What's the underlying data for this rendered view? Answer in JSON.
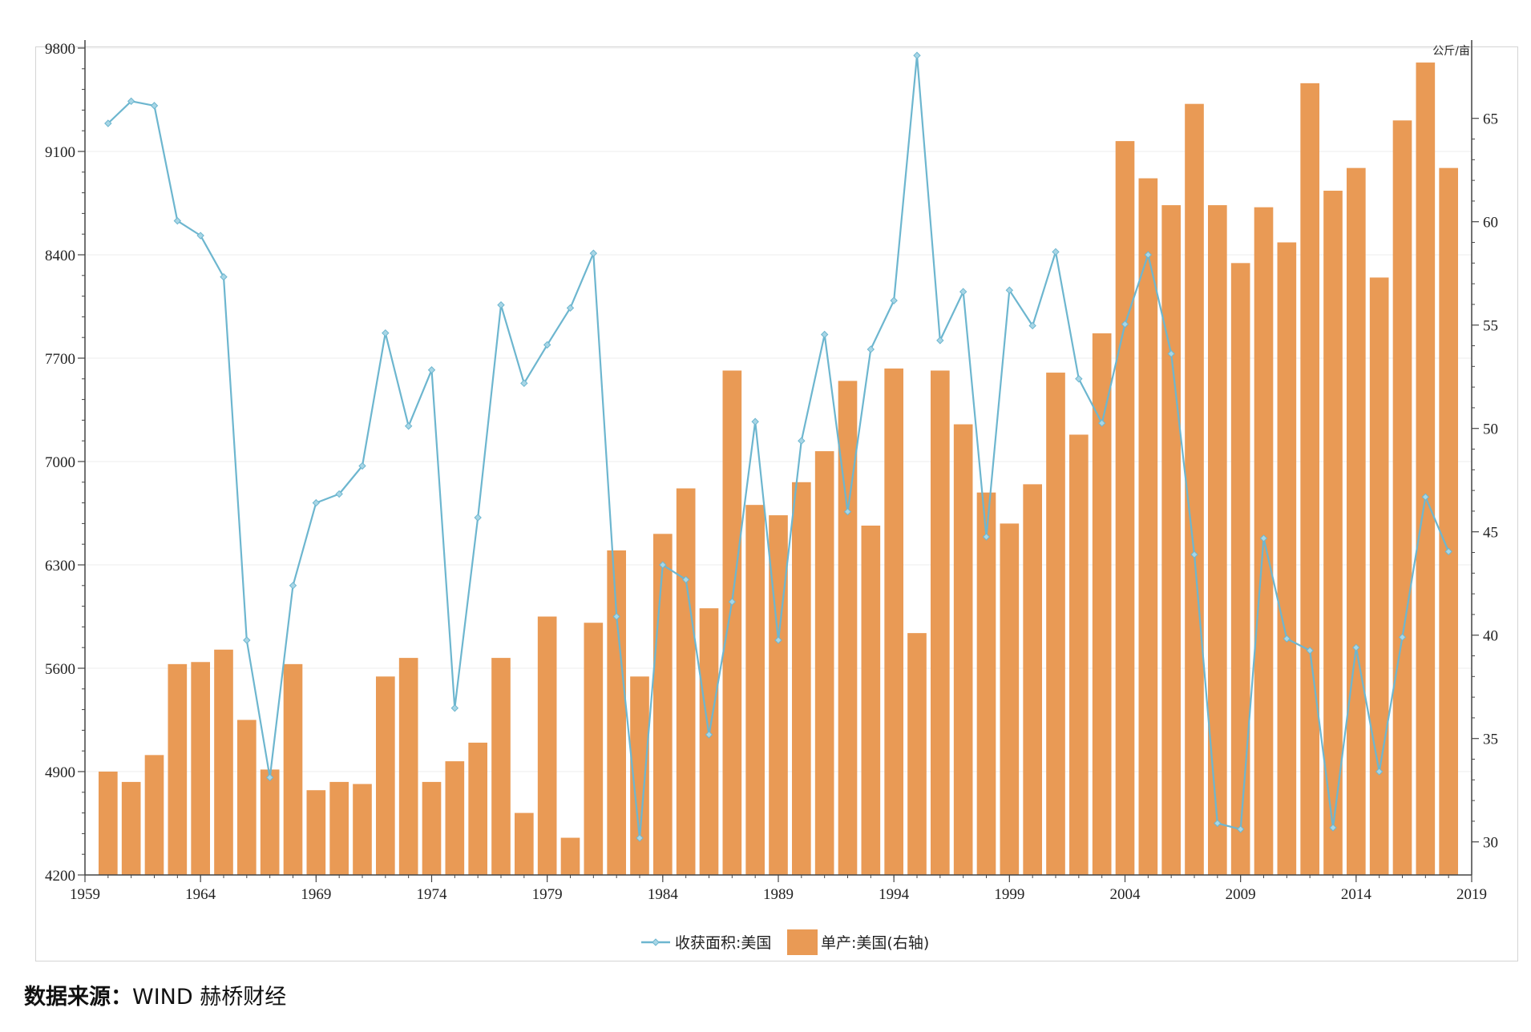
{
  "chart_data": {
    "type": "bar+line",
    "x": [
      1960,
      1961,
      1962,
      1963,
      1964,
      1965,
      1966,
      1967,
      1968,
      1969,
      1970,
      1971,
      1972,
      1973,
      1974,
      1975,
      1976,
      1977,
      1978,
      1979,
      1980,
      1981,
      1982,
      1983,
      1984,
      1985,
      1986,
      1987,
      1988,
      1989,
      1990,
      1991,
      1992,
      1993,
      1994,
      1995,
      1996,
      1997,
      1998,
      1999,
      2000,
      2001,
      2002,
      2003,
      2004,
      2005,
      2006,
      2007,
      2008,
      2009,
      2010,
      2011,
      2012,
      2013,
      2014,
      2015,
      2016,
      2017,
      2018
    ],
    "series": [
      {
        "name": "收获面积:美国",
        "kind": "line",
        "axis": "left",
        "color": "#6db6cf",
        "values": [
          9290,
          9440,
          9410,
          8630,
          8530,
          8250,
          5790,
          4860,
          6160,
          6720,
          6780,
          6970,
          7870,
          7240,
          7620,
          5330,
          6620,
          8060,
          7530,
          7790,
          8040,
          8410,
          5950,
          4450,
          6300,
          6200,
          5150,
          6050,
          7270,
          5790,
          7140,
          7860,
          6660,
          7760,
          8090,
          9750,
          7820,
          8150,
          6490,
          8160,
          7920,
          8420,
          7560,
          7260,
          7930,
          8400,
          7730,
          6370,
          4550,
          4510,
          6480,
          5800,
          5720,
          4520,
          5740,
          4900,
          5810,
          6760,
          6390
        ]
      },
      {
        "name": "单产:美国(右轴)",
        "kind": "bar",
        "axis": "right",
        "color": "#e99a55",
        "values": [
          33.4,
          32.9,
          34.2,
          38.6,
          38.7,
          39.3,
          35.9,
          33.5,
          38.6,
          32.5,
          32.9,
          32.8,
          38.0,
          38.9,
          32.9,
          33.9,
          34.8,
          38.9,
          31.4,
          40.9,
          30.2,
          40.6,
          44.1,
          38.0,
          44.9,
          47.1,
          41.3,
          52.8,
          46.3,
          45.8,
          47.4,
          48.9,
          52.3,
          45.3,
          52.9,
          40.1,
          52.8,
          50.2,
          46.9,
          45.4,
          47.3,
          52.7,
          49.7,
          54.6,
          63.9,
          62.1,
          60.8,
          65.7,
          60.8,
          58.0,
          60.7,
          59.0,
          66.7,
          61.5,
          62.6,
          57.3,
          64.9,
          67.7,
          62.6
        ]
      }
    ],
    "x_ticks": [
      1959,
      1964,
      1969,
      1974,
      1979,
      1984,
      1989,
      1994,
      1999,
      2004,
      2009,
      2014,
      2019
    ],
    "xlim": [
      1959,
      2019
    ],
    "y_left_ticks": [
      4200,
      4900,
      5600,
      6300,
      7000,
      7700,
      8400,
      9100,
      9800
    ],
    "y_left_lim": [
      4200,
      9800
    ],
    "y_right_ticks": [
      30,
      35,
      40,
      45,
      50,
      55,
      60,
      65
    ],
    "y_right_lim": [
      28.4,
      68.4
    ],
    "y_right_unit": "公斤/亩",
    "legend_position": "bottom",
    "grid": "horizontal"
  },
  "source": {
    "label": "数据来源：",
    "text": "WIND  赫桥财经"
  }
}
